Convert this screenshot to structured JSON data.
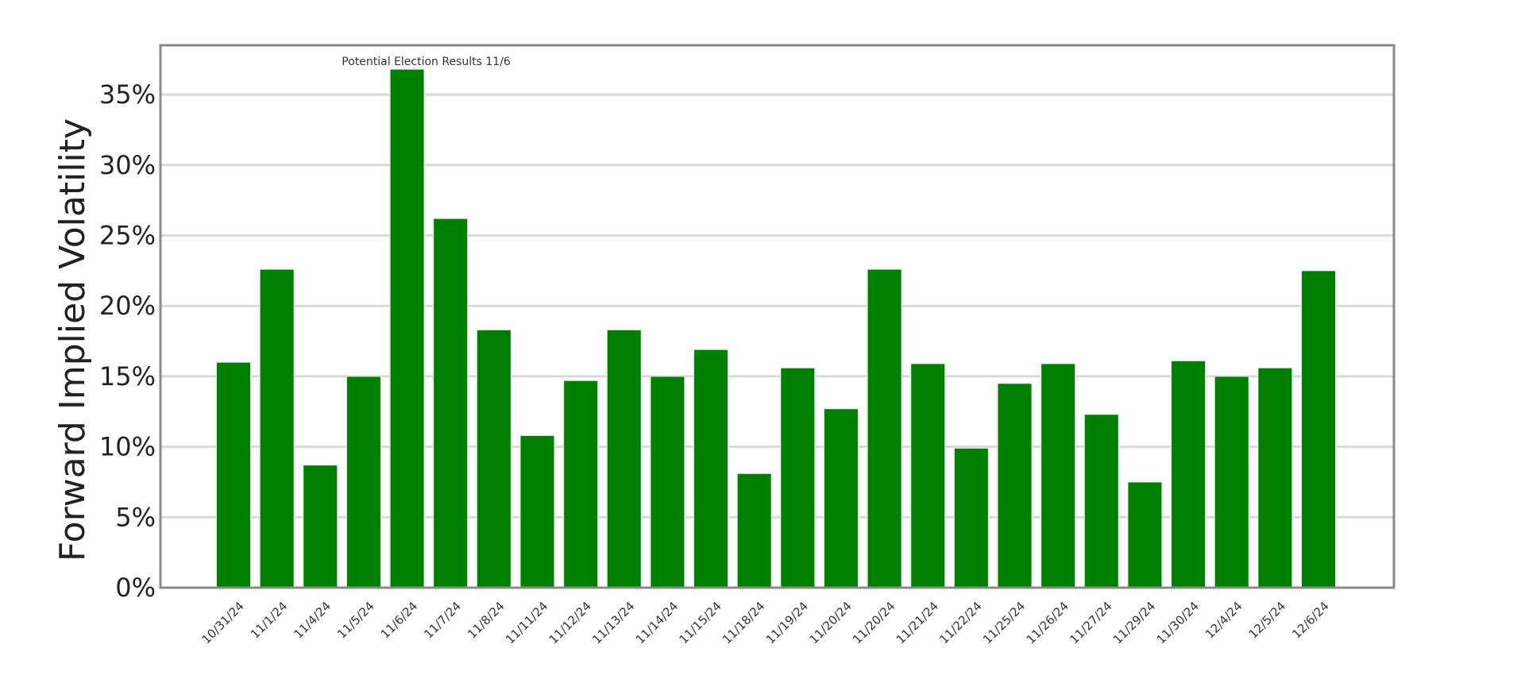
{
  "chart_data": {
    "type": "bar",
    "title": "",
    "xlabel": "",
    "ylabel": "Forward Implied Volatility",
    "ylim": [
      0,
      38.5
    ],
    "yticks": [
      0,
      5,
      10,
      15,
      20,
      25,
      30,
      35
    ],
    "ytick_labels": [
      "0%",
      "5%",
      "10%",
      "15%",
      "20%",
      "25%",
      "30%",
      "35%"
    ],
    "grid": "horizontal",
    "legend": "none",
    "bar_color": "#008000",
    "categories": [
      "10/31/24",
      "11/1/24",
      "11/4/24",
      "11/5/24",
      "11/6/24",
      "11/7/24",
      "11/8/24",
      "11/11/24",
      "11/12/24",
      "11/13/24",
      "11/14/24",
      "11/15/24",
      "11/18/24",
      "11/19/24",
      "11/20/24",
      "11/20/24",
      "11/21/24",
      "11/22/24",
      "11/25/24",
      "11/26/24",
      "11/27/24",
      "11/29/24",
      "11/30/24",
      "12/4/24",
      "12/5/24",
      "12/6/24"
    ],
    "values": [
      16.0,
      22.6,
      8.7,
      15.0,
      36.8,
      26.2,
      18.3,
      10.8,
      14.7,
      18.3,
      15.0,
      16.9,
      8.1,
      15.6,
      12.7,
      22.6,
      15.9,
      9.9,
      14.5,
      15.9,
      12.3,
      7.5,
      16.1,
      15.0,
      15.6,
      22.5
    ],
    "annotations": [
      {
        "text": "Potential Election Results 11/6",
        "category": "11/6/24"
      }
    ]
  }
}
